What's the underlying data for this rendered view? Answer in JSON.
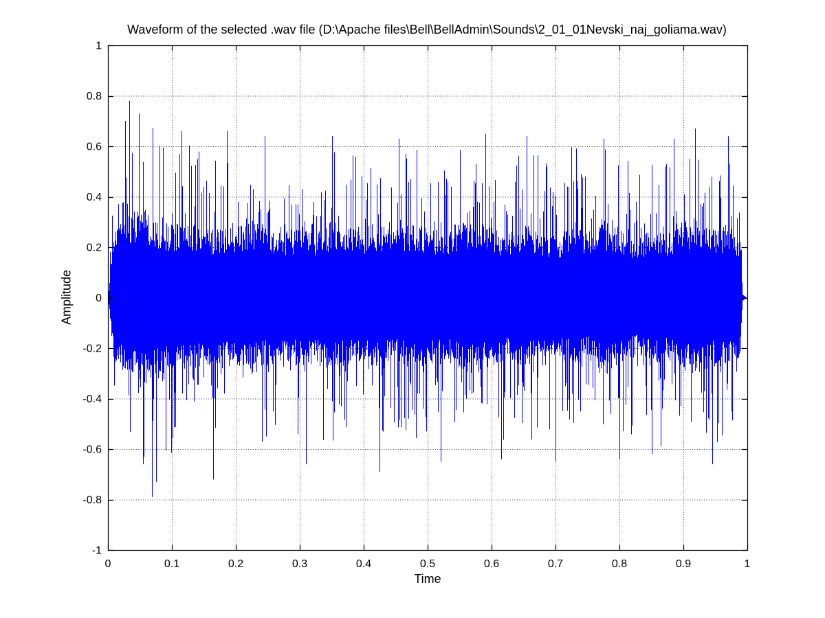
{
  "figure": {
    "background": "#ffffff"
  },
  "chart_data": {
    "type": "line",
    "subtype": "audio-waveform",
    "title": "Waveform of the selected .wav file (D:\\Apache files\\Bell\\BellAdmin\\Sounds\\2_01_01Nevski_naj_goliama.wav)",
    "xlabel": "Time",
    "ylabel": "Amplitude",
    "xlim": [
      0,
      1
    ],
    "ylim": [
      -1,
      1
    ],
    "xticks": [
      0,
      0.1,
      0.2,
      0.3,
      0.4,
      0.5,
      0.6,
      0.7,
      0.8,
      0.9,
      1
    ],
    "yticks": [
      -1,
      -0.8,
      -0.6,
      -0.4,
      -0.2,
      0,
      0.2,
      0.4,
      0.6,
      0.8,
      1
    ],
    "grid": true,
    "grid_style": "dotted",
    "grid_color": "#3a3a3a",
    "axis_color": "#000000",
    "line_color": "#0000ff",
    "legend": null,
    "signal_time_range": [
      0,
      0.9925
    ],
    "envelope": {
      "t": [
        0,
        0.025,
        0.05,
        0.075,
        0.1,
        0.125,
        0.15,
        0.175,
        0.2,
        0.225,
        0.25,
        0.275,
        0.3,
        0.325,
        0.35,
        0.375,
        0.4,
        0.425,
        0.45,
        0.475,
        0.5,
        0.525,
        0.55,
        0.575,
        0.6,
        0.625,
        0.65,
        0.675,
        0.7,
        0.725,
        0.75,
        0.775,
        0.8,
        0.825,
        0.85,
        0.875,
        0.9,
        0.925,
        0.95,
        0.975,
        1
      ],
      "peak_pos": [
        0.55,
        0.65,
        0.72,
        0.66,
        0.6,
        0.63,
        0.58,
        0.56,
        0.6,
        0.62,
        0.58,
        0.56,
        0.6,
        0.56,
        0.62,
        0.58,
        0.56,
        0.6,
        0.57,
        0.61,
        0.58,
        0.55,
        0.6,
        0.63,
        0.59,
        0.56,
        0.61,
        0.58,
        0.55,
        0.6,
        0.57,
        0.62,
        0.58,
        0.55,
        0.6,
        0.57,
        0.62,
        0.66,
        0.6,
        0.63,
        0.5
      ],
      "peak_neg": [
        -0.52,
        -0.62,
        -0.7,
        -0.75,
        -0.62,
        -0.58,
        -0.62,
        -0.68,
        -0.58,
        -0.56,
        -0.6,
        -0.57,
        -0.6,
        -0.56,
        -0.61,
        -0.58,
        -0.62,
        -0.66,
        -0.58,
        -0.56,
        -0.6,
        -0.57,
        -0.55,
        -0.6,
        -0.62,
        -0.57,
        -0.55,
        -0.6,
        -0.63,
        -0.57,
        -0.55,
        -0.59,
        -0.62,
        -0.56,
        -0.58,
        -0.61,
        -0.57,
        -0.6,
        -0.64,
        -0.6,
        -0.45
      ],
      "body_pos": [
        0.22,
        0.28,
        0.3,
        0.27,
        0.25,
        0.26,
        0.24,
        0.23,
        0.25,
        0.26,
        0.24,
        0.22,
        0.25,
        0.23,
        0.26,
        0.24,
        0.22,
        0.25,
        0.23,
        0.26,
        0.24,
        0.22,
        0.25,
        0.27,
        0.24,
        0.22,
        0.25,
        0.23,
        0.21,
        0.24,
        0.22,
        0.26,
        0.24,
        0.21,
        0.24,
        0.22,
        0.26,
        0.28,
        0.24,
        0.25,
        0.16
      ],
      "body_neg": [
        -0.2,
        -0.27,
        -0.3,
        -0.28,
        -0.24,
        -0.25,
        -0.23,
        -0.24,
        -0.23,
        -0.25,
        -0.23,
        -0.21,
        -0.24,
        -0.22,
        -0.25,
        -0.23,
        -0.21,
        -0.24,
        -0.22,
        -0.25,
        -0.23,
        -0.21,
        -0.24,
        -0.26,
        -0.23,
        -0.21,
        -0.24,
        -0.22,
        -0.2,
        -0.23,
        -0.21,
        -0.25,
        -0.23,
        -0.2,
        -0.23,
        -0.21,
        -0.25,
        -0.27,
        -0.23,
        -0.24,
        -0.15
      ]
    },
    "notable_spikes": [
      {
        "t": 0.027,
        "a": 0.7
      },
      {
        "t": 0.033,
        "a": 0.78
      },
      {
        "t": 0.048,
        "a": 0.73
      },
      {
        "t": 0.055,
        "a": -0.66
      },
      {
        "t": 0.069,
        "a": -0.79
      },
      {
        "t": 0.075,
        "a": -0.73
      },
      {
        "t": 0.115,
        "a": 0.66
      },
      {
        "t": 0.165,
        "a": -0.72
      },
      {
        "t": 0.186,
        "a": 0.66
      },
      {
        "t": 0.245,
        "a": 0.64
      },
      {
        "t": 0.31,
        "a": -0.66
      },
      {
        "t": 0.35,
        "a": 0.64
      },
      {
        "t": 0.425,
        "a": -0.69
      },
      {
        "t": 0.455,
        "a": 0.63
      },
      {
        "t": 0.52,
        "a": -0.65
      },
      {
        "t": 0.59,
        "a": 0.65
      },
      {
        "t": 0.615,
        "a": -0.64
      },
      {
        "t": 0.655,
        "a": 0.64
      },
      {
        "t": 0.7,
        "a": -0.65
      },
      {
        "t": 0.775,
        "a": 0.63
      },
      {
        "t": 0.8,
        "a": -0.64
      },
      {
        "t": 0.85,
        "a": -0.62
      },
      {
        "t": 0.885,
        "a": 0.63
      },
      {
        "t": 0.918,
        "a": 0.67
      },
      {
        "t": 0.945,
        "a": -0.66
      },
      {
        "t": 0.97,
        "a": 0.64
      }
    ]
  }
}
